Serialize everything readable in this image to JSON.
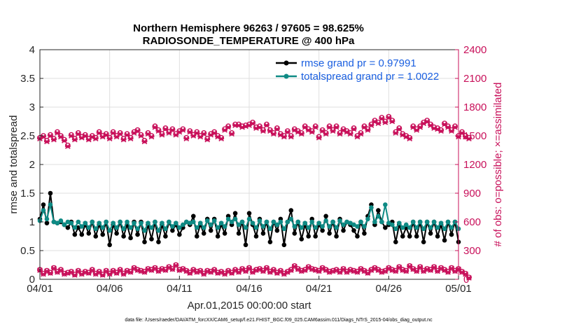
{
  "chart_data": {
    "type": "line",
    "title": [
      "Northern Hemisphere 96263 / 97605 = 98.625%",
      "RADIOSONDE_TEMPERATURE @ 400 hPa"
    ],
    "xlabel": "Apr.01,2015 00:00:00 start",
    "ylabel_left": "rmse and totalspread",
    "ylabel_right": "# of obs: o=possible; ×=assimilated",
    "footnote": "data file: /Users/raeder/DAI/ATM_forcXX/CAM6_setup/f.e21.FHIST_BGC.f09_025.CAM6assim.011/Diags_NTrS_2015-04/obs_diag_output.nc",
    "xlim": [
      0,
      30
    ],
    "ylim_left": [
      0,
      4
    ],
    "ylim_right": [
      0,
      2400
    ],
    "xticks": [
      0,
      5,
      10,
      15,
      20,
      25,
      30
    ],
    "xtick_labels": [
      "04/01",
      "04/06",
      "04/11",
      "04/16",
      "04/21",
      "04/26",
      "05/01"
    ],
    "yticks_left": [
      "0",
      "0.5",
      "1",
      "1.5",
      "2",
      "2.5",
      "3",
      "3.5",
      "4"
    ],
    "yticks_right": [
      "0",
      "300",
      "600",
      "900",
      "1200",
      "1500",
      "1800",
      "2100",
      "2400"
    ],
    "grid": true,
    "legend_position": "top-right",
    "x_step_days": 0.25,
    "series": [
      {
        "name": "rmse grand pr = 0.97991",
        "axis": "left",
        "color": "#000000",
        "marker": "circle",
        "values": [
          1.05,
          1.3,
          0.98,
          1.5,
          1.0,
          0.98,
          1.0,
          0.95,
          0.9,
          1.0,
          0.78,
          0.9,
          0.78,
          0.95,
          0.8,
          1.0,
          0.75,
          0.95,
          0.78,
          1.0,
          0.6,
          0.95,
          0.8,
          1.0,
          0.75,
          0.95,
          0.72,
          1.0,
          0.78,
          1.0,
          0.65,
          0.95,
          0.7,
          1.0,
          0.65,
          0.95,
          0.75,
          1.0,
          0.85,
          0.95,
          0.78,
          0.9,
          1.0,
          0.95,
          1.1,
          0.75,
          0.95,
          0.8,
          1.05,
          0.85,
          1.05,
          0.75,
          0.95,
          0.8,
          1.1,
          0.95,
          1.15,
          0.8,
          1.0,
          0.6,
          1.15,
          0.95,
          0.75,
          1.05,
          0.8,
          1.0,
          0.65,
          1.0,
          0.85,
          1.05,
          0.6,
          1.0,
          1.2,
          0.8,
          1.0,
          0.7,
          0.95,
          0.75,
          1.05,
          0.75,
          0.95,
          0.85,
          1.1,
          0.8,
          1.0,
          0.75,
          1.05,
          0.85,
          1.0,
          0.95,
          0.85,
          0.75,
          1.0,
          0.8,
          1.1,
          1.3,
          0.95,
          1.2,
          1.0,
          0.9,
          0.95,
          1.0,
          0.65,
          0.95,
          0.75,
          0.9,
          0.75,
          1.0,
          0.75,
          1.0,
          0.65,
          1.0,
          0.8,
          1.0,
          0.75,
          0.95,
          0.68,
          1.0,
          0.78,
          1.0,
          0.65
        ]
      },
      {
        "name": "totalspread grand pr = 1.0022",
        "axis": "left",
        "color": "#0e8a84",
        "marker": "circle",
        "values": [
          1.02,
          1.2,
          1.05,
          1.3,
          1.0,
          0.98,
          1.02,
          0.95,
          1.0,
          0.98,
          0.9,
          1.0,
          0.92,
          0.98,
          0.9,
          1.0,
          0.88,
          0.98,
          0.9,
          1.0,
          0.85,
          0.98,
          0.9,
          1.0,
          0.88,
          1.0,
          0.9,
          0.98,
          0.88,
          0.98,
          0.85,
          0.98,
          0.9,
          1.0,
          0.85,
          0.98,
          0.88,
          1.0,
          0.92,
          0.98,
          0.9,
          0.95,
          1.0,
          0.98,
          1.0,
          0.9,
          0.98,
          0.9,
          1.02,
          0.95,
          1.02,
          0.9,
          0.98,
          0.92,
          1.05,
          1.0,
          1.05,
          0.95,
          1.0,
          0.9,
          1.05,
          0.98,
          0.9,
          1.02,
          0.92,
          1.0,
          0.88,
          1.0,
          0.95,
          1.0,
          0.88,
          1.0,
          1.05,
          0.92,
          1.0,
          0.9,
          0.98,
          0.9,
          1.0,
          0.9,
          0.98,
          0.92,
          1.02,
          0.92,
          1.0,
          0.9,
          1.02,
          0.95,
          1.0,
          0.98,
          0.95,
          0.92,
          1.0,
          0.92,
          1.05,
          1.25,
          1.0,
          1.1,
          1.0,
          1.3,
          0.98,
          0.95,
          0.88,
          0.98,
          0.9,
          0.95,
          0.9,
          1.0,
          0.9,
          1.0,
          0.88,
          1.0,
          0.9,
          1.0,
          0.9,
          0.98,
          0.88,
          1.0,
          0.9,
          1.0,
          0.88
        ]
      },
      {
        "name": "possible_upper",
        "axis": "right",
        "color": "#c8105a",
        "marker": "o",
        "values": [
          1480,
          1500,
          1450,
          1510,
          1470,
          1540,
          1500,
          1460,
          1400,
          1510,
          1470,
          1530,
          1490,
          1510,
          1470,
          1500,
          1480,
          1540,
          1500,
          1520,
          1480,
          1540,
          1500,
          1530,
          1470,
          1520,
          1480,
          1540,
          1560,
          1510,
          1450,
          1530,
          1500,
          1600,
          1560,
          1520,
          1580,
          1540,
          1570,
          1520,
          1550,
          1570,
          1480,
          1550,
          1510,
          1540,
          1500,
          1530,
          1470,
          1520,
          1540,
          1500,
          1480,
          1570,
          1600,
          1530,
          1620,
          1620,
          1600,
          1610,
          1620,
          1640,
          1590,
          1600,
          1560,
          1620,
          1560,
          1530,
          1580,
          1520,
          1500,
          1550,
          1500,
          1570,
          1550,
          1530,
          1600,
          1570,
          1550,
          1600,
          1490,
          1560,
          1530,
          1600,
          1560,
          1600,
          1530,
          1570,
          1550,
          1530,
          1580,
          1500,
          1530,
          1600,
          1570,
          1620,
          1660,
          1640,
          1690,
          1650,
          1700,
          1660,
          1540,
          1580,
          1520,
          1500,
          1480,
          1600,
          1570,
          1600,
          1640,
          1660,
          1620,
          1590,
          1580,
          1560,
          1630,
          1600,
          1560,
          1600,
          1500,
          1540,
          1500,
          1480
        ]
      },
      {
        "name": "assimilated_upper",
        "axis": "right",
        "color": "#c8105a",
        "marker": "x",
        "values": [
          1470,
          1490,
          1440,
          1500,
          1460,
          1530,
          1490,
          1450,
          1390,
          1500,
          1460,
          1520,
          1480,
          1500,
          1460,
          1490,
          1470,
          1530,
          1490,
          1510,
          1470,
          1530,
          1490,
          1520,
          1460,
          1510,
          1470,
          1530,
          1550,
          1500,
          1440,
          1520,
          1490,
          1590,
          1550,
          1510,
          1570,
          1530,
          1560,
          1510,
          1540,
          1560,
          1470,
          1540,
          1500,
          1530,
          1490,
          1520,
          1460,
          1510,
          1530,
          1490,
          1470,
          1560,
          1590,
          1520,
          1610,
          1610,
          1590,
          1600,
          1610,
          1630,
          1580,
          1590,
          1550,
          1610,
          1550,
          1520,
          1570,
          1510,
          1490,
          1540,
          1490,
          1560,
          1540,
          1520,
          1590,
          1560,
          1540,
          1590,
          1480,
          1550,
          1520,
          1590,
          1550,
          1590,
          1520,
          1560,
          1540,
          1520,
          1570,
          1490,
          1520,
          1590,
          1560,
          1610,
          1650,
          1630,
          1680,
          1640,
          1690,
          1650,
          1530,
          1570,
          1510,
          1490,
          1470,
          1590,
          1560,
          1590,
          1630,
          1650,
          1610,
          1580,
          1570,
          1550,
          1620,
          1590,
          1550,
          1590,
          1490,
          1530,
          1490,
          1470
        ]
      },
      {
        "name": "possible_lower",
        "axis": "right",
        "color": "#c8105a",
        "marker": "o",
        "values": [
          100,
          60,
          90,
          70,
          120,
          80,
          100,
          60,
          70,
          80,
          50,
          90,
          60,
          80,
          70,
          100,
          60,
          80,
          50,
          90,
          60,
          90,
          70,
          100,
          60,
          90,
          80,
          120,
          100,
          90,
          80,
          110,
          100,
          120,
          90,
          110,
          100,
          130,
          110,
          150,
          100,
          110,
          90,
          70,
          100,
          80,
          90,
          60,
          90,
          80,
          100,
          70,
          80,
          60,
          90,
          70,
          100,
          80,
          110,
          90,
          120,
          80,
          100,
          110,
          90,
          120,
          80,
          100,
          70,
          90,
          60,
          80,
          100,
          140,
          110,
          90,
          100,
          130,
          110,
          100,
          90,
          120,
          100,
          80,
          90,
          100,
          80,
          110,
          80,
          100,
          90,
          80,
          110,
          90,
          70,
          100,
          120,
          100,
          80,
          90,
          120,
          100,
          90,
          130,
          100,
          90,
          140,
          110,
          90,
          130,
          90,
          110,
          100,
          130,
          90,
          120,
          100,
          80,
          120,
          90,
          110,
          80,
          60,
          20
        ]
      },
      {
        "name": "assimilated_lower",
        "axis": "right",
        "color": "#c8105a",
        "marker": "x",
        "values": [
          95,
          55,
          85,
          65,
          115,
          75,
          95,
          55,
          65,
          75,
          45,
          85,
          55,
          75,
          65,
          95,
          55,
          75,
          45,
          85,
          55,
          85,
          65,
          95,
          55,
          85,
          75,
          115,
          95,
          85,
          75,
          105,
          95,
          115,
          85,
          105,
          95,
          125,
          105,
          145,
          95,
          105,
          85,
          65,
          95,
          75,
          85,
          55,
          85,
          75,
          95,
          65,
          75,
          55,
          85,
          65,
          95,
          75,
          105,
          85,
          115,
          75,
          95,
          105,
          85,
          115,
          75,
          95,
          65,
          85,
          55,
          75,
          95,
          135,
          105,
          85,
          95,
          125,
          105,
          95,
          85,
          115,
          95,
          75,
          85,
          95,
          75,
          105,
          75,
          95,
          85,
          75,
          105,
          85,
          65,
          95,
          115,
          95,
          75,
          85,
          115,
          95,
          85,
          125,
          95,
          85,
          135,
          105,
          85,
          125,
          85,
          105,
          95,
          125,
          85,
          115,
          95,
          75,
          115,
          85,
          105,
          75,
          55,
          15
        ]
      }
    ]
  }
}
